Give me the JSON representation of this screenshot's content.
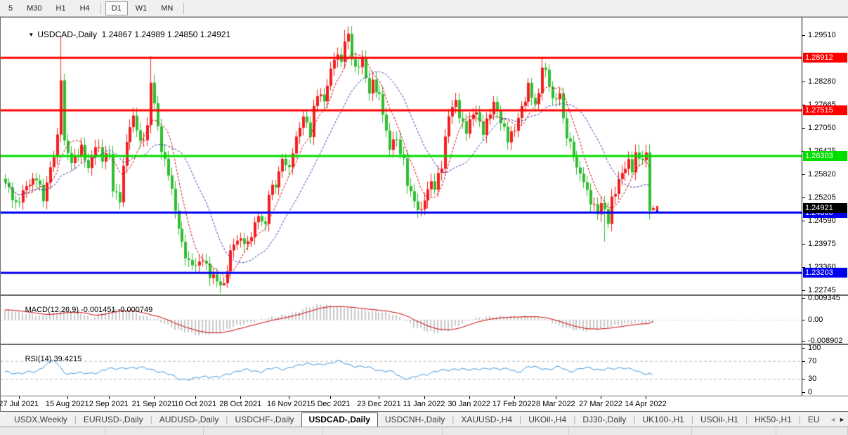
{
  "toolbar": {
    "timeframes": [
      {
        "label": "5",
        "active": false
      },
      {
        "label": "M30",
        "active": false
      },
      {
        "label": "H1",
        "active": false
      },
      {
        "label": "H4",
        "active": false
      },
      {
        "label": "D1",
        "active": true
      },
      {
        "label": "W1",
        "active": false
      },
      {
        "label": "MN",
        "active": false
      }
    ]
  },
  "chart_data": {
    "type": "candlestick",
    "title": {
      "symbol_label": "USDCAD-,Daily",
      "ohlc_text": "1.24867 1.24989 1.24850 1.24921",
      "dropdown_glyph": "▼"
    },
    "ohlc_display": {
      "open": "1.24867",
      "high": "1.24989",
      "low": "1.24850",
      "close": "1.24921"
    },
    "ylim": [
      1.22628,
      1.29978
    ],
    "y_ticks": [
      {
        "label": "1.29510",
        "value": 1.2951
      },
      {
        "label": "1.28280",
        "value": 1.2828
      },
      {
        "label": "1.27665",
        "value": 1.27665
      },
      {
        "label": "1.27050",
        "value": 1.2705
      },
      {
        "label": "1.26425",
        "value": 1.26425
      },
      {
        "label": "1.25820",
        "value": 1.2582
      },
      {
        "label": "1.25205",
        "value": 1.25205
      },
      {
        "label": "1.24590",
        "value": 1.2459
      },
      {
        "label": "1.23975",
        "value": 1.23975
      },
      {
        "label": "1.23360",
        "value": 1.2336
      },
      {
        "label": "1.22745",
        "value": 1.22745
      }
    ],
    "levels": [
      {
        "label": "1.28912",
        "value": 1.28912,
        "color": "#FF0000"
      },
      {
        "label": "1.27515",
        "value": 1.27515,
        "color": "#FF0000"
      },
      {
        "label": "1.26303",
        "value": 1.26303,
        "color": "#00DE00"
      },
      {
        "label": "1.24800",
        "value": 1.248,
        "color": "#0000F0"
      },
      {
        "label": "1.23203",
        "value": 1.23203,
        "color": "#0000F0"
      }
    ],
    "current_price": {
      "label": "1.24921",
      "value": 1.24921,
      "color": "#000000"
    },
    "x_ticks": {
      "labels": [
        "27 Jul 2021",
        "15 Aug 2021",
        "2 Sep 2021",
        "21 Sep 2021",
        "10 Oct 2021",
        "28 Oct 2021",
        "16 Nov 2021",
        "5 Dec 2021",
        "23 Dec 2021",
        "11 Jan 2022",
        "30 Jan 2022",
        "17 Feb 2022",
        "8 Mar 2022",
        "27 Mar 2022",
        "14 Apr 2022"
      ],
      "bar_index": [
        4,
        18,
        30,
        43,
        55,
        68,
        82,
        94,
        108,
        121,
        134,
        147,
        159,
        172,
        185
      ]
    },
    "bars": {
      "count": 188,
      "x0": 6,
      "dx": 4.93,
      "close_anchors": [
        [
          0,
          1.2555
        ],
        [
          3,
          1.2505
        ],
        [
          6,
          1.2545
        ],
        [
          9,
          1.258
        ],
        [
          11,
          1.251
        ],
        [
          13,
          1.26
        ],
        [
          15,
          1.268
        ],
        [
          16,
          1.2835
        ],
        [
          17,
          1.266
        ],
        [
          19,
          1.262
        ],
        [
          22,
          1.2645
        ],
        [
          24,
          1.26
        ],
        [
          26,
          1.266
        ],
        [
          28,
          1.262
        ],
        [
          30,
          1.2645
        ],
        [
          31,
          1.254
        ],
        [
          33,
          1.251
        ],
        [
          35,
          1.268
        ],
        [
          37,
          1.2735
        ],
        [
          39,
          1.266
        ],
        [
          41,
          1.271
        ],
        [
          42,
          1.283
        ],
        [
          44,
          1.27
        ],
        [
          45,
          1.265
        ],
        [
          47,
          1.259
        ],
        [
          49,
          1.248
        ],
        [
          51,
          1.24
        ],
        [
          53,
          1.2345
        ],
        [
          55,
          1.2335
        ],
        [
          57,
          1.2365
        ],
        [
          59,
          1.231
        ],
        [
          61,
          1.23
        ],
        [
          63,
          1.229
        ],
        [
          64,
          1.233
        ],
        [
          66,
          1.24
        ],
        [
          68,
          1.2415
        ],
        [
          70,
          1.239
        ],
        [
          72,
          1.245
        ],
        [
          73,
          1.248
        ],
        [
          75,
          1.244
        ],
        [
          76,
          1.253
        ],
        [
          78,
          1.256
        ],
        [
          80,
          1.262
        ],
        [
          82,
          1.259
        ],
        [
          83,
          1.265
        ],
        [
          85,
          1.271
        ],
        [
          86,
          1.273
        ],
        [
          88,
          1.269
        ],
        [
          89,
          1.276
        ],
        [
          90,
          1.28
        ],
        [
          92,
          1.277
        ],
        [
          93,
          1.282
        ],
        [
          94,
          1.286
        ],
        [
          95,
          1.29
        ],
        [
          97,
          1.288
        ],
        [
          98,
          1.293
        ],
        [
          99,
          1.2955
        ],
        [
          100,
          1.29
        ],
        [
          101,
          1.286
        ],
        [
          103,
          1.288
        ],
        [
          104,
          1.284
        ],
        [
          105,
          1.2805
        ],
        [
          106,
          1.283
        ],
        [
          108,
          1.278
        ],
        [
          109,
          1.2745
        ],
        [
          110,
          1.27
        ],
        [
          111,
          1.265
        ],
        [
          112,
          1.268
        ],
        [
          114,
          1.264
        ],
        [
          115,
          1.262
        ],
        [
          116,
          1.256
        ],
        [
          117,
          1.254
        ],
        [
          118,
          1.25
        ],
        [
          120,
          1.248
        ],
        [
          121,
          1.2525
        ],
        [
          123,
          1.256
        ],
        [
          124,
          1.254
        ],
        [
          126,
          1.261
        ],
        [
          127,
          1.268
        ],
        [
          128,
          1.274
        ],
        [
          130,
          1.277
        ],
        [
          131,
          1.274
        ],
        [
          133,
          1.27
        ],
        [
          134,
          1.272
        ],
        [
          136,
          1.275
        ],
        [
          137,
          1.272
        ],
        [
          138,
          1.27
        ],
        [
          140,
          1.274
        ],
        [
          141,
          1.277
        ],
        [
          143,
          1.273
        ],
        [
          144,
          1.27
        ],
        [
          145,
          1.267
        ],
        [
          147,
          1.27
        ],
        [
          148,
          1.274
        ],
        [
          150,
          1.278
        ],
        [
          151,
          1.281
        ],
        [
          153,
          1.277
        ],
        [
          154,
          1.28
        ],
        [
          155,
          1.287
        ],
        [
          157,
          1.282
        ],
        [
          158,
          1.278
        ],
        [
          160,
          1.28
        ],
        [
          161,
          1.272
        ],
        [
          162,
          1.268
        ],
        [
          164,
          1.264
        ],
        [
          165,
          1.26
        ],
        [
          167,
          1.256
        ],
        [
          168,
          1.253
        ],
        [
          170,
          1.25
        ],
        [
          171,
          1.248
        ],
        [
          172,
          1.25
        ],
        [
          174,
          1.246
        ],
        [
          175,
          1.252
        ],
        [
          177,
          1.256
        ],
        [
          178,
          1.258
        ],
        [
          180,
          1.262
        ],
        [
          181,
          1.26
        ],
        [
          182,
          1.263
        ],
        [
          184,
          1.2615
        ],
        [
          185,
          1.264
        ],
        [
          186,
          1.2485
        ],
        [
          187,
          1.24921
        ]
      ],
      "spikes": [
        {
          "i": 16,
          "high": 1.295
        },
        {
          "i": 42,
          "high": 1.2895
        },
        {
          "i": 63,
          "low": 1.2287
        },
        {
          "i": 98,
          "high": 1.2965
        },
        {
          "i": 155,
          "high": 1.2891
        },
        {
          "i": 173,
          "low": 1.2403
        },
        {
          "i": 186,
          "low": 1.2462
        }
      ],
      "last_bar": {
        "o": 1.24867,
        "h": 1.24989,
        "l": 1.2485,
        "c": 1.24921
      }
    },
    "moving_averages": [
      {
        "name": "fast",
        "period": 7,
        "color": "#CC0000"
      },
      {
        "name": "slow",
        "period": 18,
        "color": "#3535AE"
      }
    ],
    "macd": {
      "name": "MACD(12,26,9)",
      "values_text": "-0.001451 -0.000749",
      "macd_value": -0.001451,
      "signal_value": -0.000749,
      "axis": [
        {
          "label": "0.009345",
          "value": 0.009345
        },
        {
          "label": "0.00",
          "value": 0
        },
        {
          "label": "-0.008902",
          "value": -0.008902
        }
      ],
      "anchors": [
        [
          0,
          0.0042
        ],
        [
          11,
          0.0015
        ],
        [
          17,
          0.0038
        ],
        [
          22,
          0.003
        ],
        [
          25,
          0.0005
        ],
        [
          29,
          0.0035
        ],
        [
          32,
          0.0048
        ],
        [
          36,
          0.004
        ],
        [
          40,
          0.0015
        ],
        [
          44,
          0.0
        ],
        [
          49,
          -0.004
        ],
        [
          56,
          -0.0065
        ],
        [
          61,
          -0.0058
        ],
        [
          66,
          -0.003
        ],
        [
          71,
          -0.001
        ],
        [
          75,
          0.0005
        ],
        [
          80,
          0.0018
        ],
        [
          84,
          0.0032
        ],
        [
          88,
          0.0055
        ],
        [
          91,
          0.0065
        ],
        [
          95,
          0.006
        ],
        [
          99,
          0.005
        ],
        [
          103,
          0.0042
        ],
        [
          106,
          0.0038
        ],
        [
          111,
          0.0028
        ],
        [
          115,
          0.0005
        ],
        [
          118,
          -0.003
        ],
        [
          122,
          -0.005
        ],
        [
          124,
          -0.0055
        ],
        [
          128,
          -0.0045
        ],
        [
          132,
          -0.0015
        ],
        [
          135,
          0.0005
        ],
        [
          139,
          0.0012
        ],
        [
          143,
          0.0015
        ],
        [
          147,
          0.0013
        ],
        [
          151,
          0.0015
        ],
        [
          154,
          0.001
        ],
        [
          157,
          -0.0005
        ],
        [
          160,
          -0.0025
        ],
        [
          163,
          -0.004
        ],
        [
          167,
          -0.0048
        ],
        [
          171,
          -0.004
        ],
        [
          175,
          -0.0028
        ],
        [
          179,
          -0.0018
        ],
        [
          183,
          -0.0012
        ],
        [
          187,
          -0.001451
        ]
      ],
      "signal_smoothing": 9
    },
    "rsi": {
      "name": "RSI(14)",
      "value_text": "39.4215",
      "value": 39.4215,
      "axis": [
        {
          "label": "100",
          "value": 100
        },
        {
          "label": "70",
          "value": 70
        },
        {
          "label": "30",
          "value": 30
        },
        {
          "label": "0",
          "value": 0
        }
      ],
      "dashed_levels": [
        70,
        30
      ],
      "anchors": [
        [
          0,
          45
        ],
        [
          5,
          42
        ],
        [
          9,
          47
        ],
        [
          14,
          72
        ],
        [
          18,
          40
        ],
        [
          23,
          44
        ],
        [
          27,
          42
        ],
        [
          30,
          55
        ],
        [
          34,
          52
        ],
        [
          39,
          57
        ],
        [
          42,
          50
        ],
        [
          46,
          45
        ],
        [
          50,
          30
        ],
        [
          54,
          29
        ],
        [
          58,
          36
        ],
        [
          62,
          33
        ],
        [
          66,
          46
        ],
        [
          70,
          50
        ],
        [
          74,
          46
        ],
        [
          78,
          55
        ],
        [
          81,
          52
        ],
        [
          84,
          58
        ],
        [
          87,
          66
        ],
        [
          90,
          60
        ],
        [
          93,
          64
        ],
        [
          96,
          70
        ],
        [
          99,
          62
        ],
        [
          102,
          58
        ],
        [
          105,
          55
        ],
        [
          109,
          48
        ],
        [
          112,
          45
        ],
        [
          115,
          32
        ],
        [
          117,
          30
        ],
        [
          120,
          38
        ],
        [
          124,
          45
        ],
        [
          127,
          50
        ],
        [
          130,
          52
        ],
        [
          133,
          50
        ],
        [
          136,
          53
        ],
        [
          139,
          51
        ],
        [
          142,
          54
        ],
        [
          145,
          52
        ],
        [
          148,
          44
        ],
        [
          151,
          58
        ],
        [
          154,
          54
        ],
        [
          157,
          52
        ],
        [
          160,
          56
        ],
        [
          163,
          47
        ],
        [
          166,
          52
        ],
        [
          169,
          55
        ],
        [
          172,
          50
        ],
        [
          175,
          52
        ],
        [
          178,
          56
        ],
        [
          181,
          50
        ],
        [
          184,
          44
        ],
        [
          187,
          39.4215
        ]
      ]
    },
    "colors": {
      "candle_up": "#F51D1D",
      "candle_down": "#2FBE2F",
      "macd_hist": "#C8C8C8",
      "macd_signal": "#CC0000",
      "rsi_line": "#3D95DD",
      "rsi_levels": "#BBBBBB",
      "current_box_bg": "#000000"
    }
  },
  "tabs": {
    "items": [
      "USDX,Weekly",
      "EURUSD-,Daily",
      "AUDUSD-,Daily",
      "USDCHF-,Daily",
      "USDCAD-,Daily",
      "USDCNH-,Daily",
      "XAUUSD-,H4",
      "UKOil-,H4",
      "DJ30-,Daily",
      "UK100-,H1",
      "USOil-,H1",
      "HK50-,H1",
      "EU"
    ],
    "active_index": 4,
    "scroll_left_glyph": "◄",
    "scroll_right_glyph": "►"
  }
}
